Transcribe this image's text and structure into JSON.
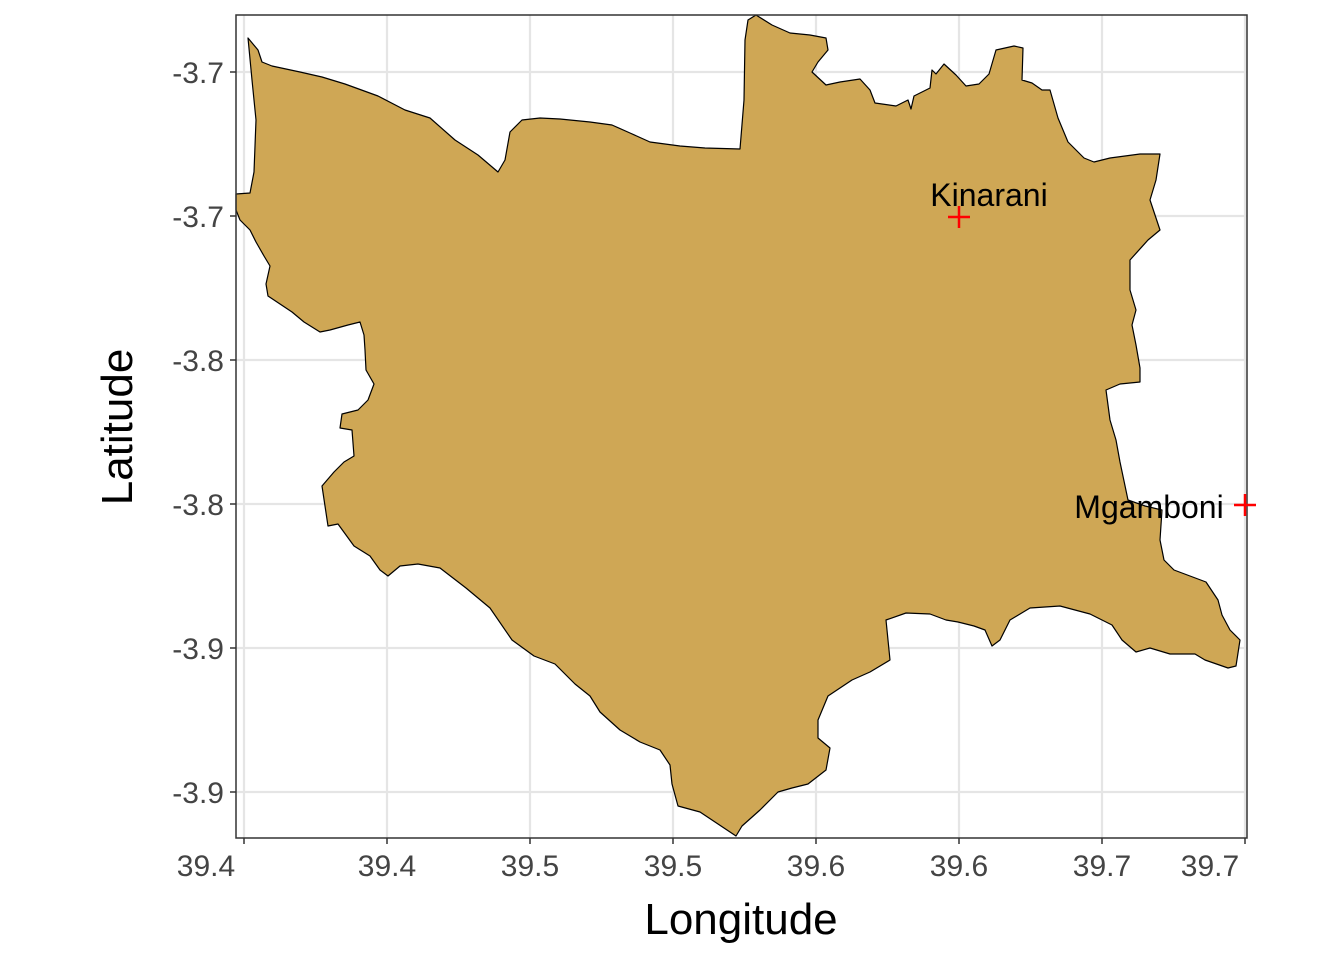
{
  "chart_data": {
    "type": "map",
    "xlabel": "Longitude",
    "ylabel": "Latitude",
    "x_ticks": [
      "39.4",
      "39.4",
      "39.5",
      "39.5",
      "39.6",
      "39.6",
      "39.7",
      "39.7"
    ],
    "y_ticks": [
      "-3.7",
      "-3.7",
      "-3.8",
      "-3.8",
      "-3.9",
      "-3.9"
    ],
    "grid": true,
    "region": {
      "fill": "#CFA755",
      "stroke": "#000000"
    },
    "places": [
      {
        "name": "Kinarani",
        "marker": "+",
        "color": "#FF0000"
      },
      {
        "name": "Mgamboni",
        "marker": "+",
        "color": "#FF0000"
      }
    ]
  }
}
